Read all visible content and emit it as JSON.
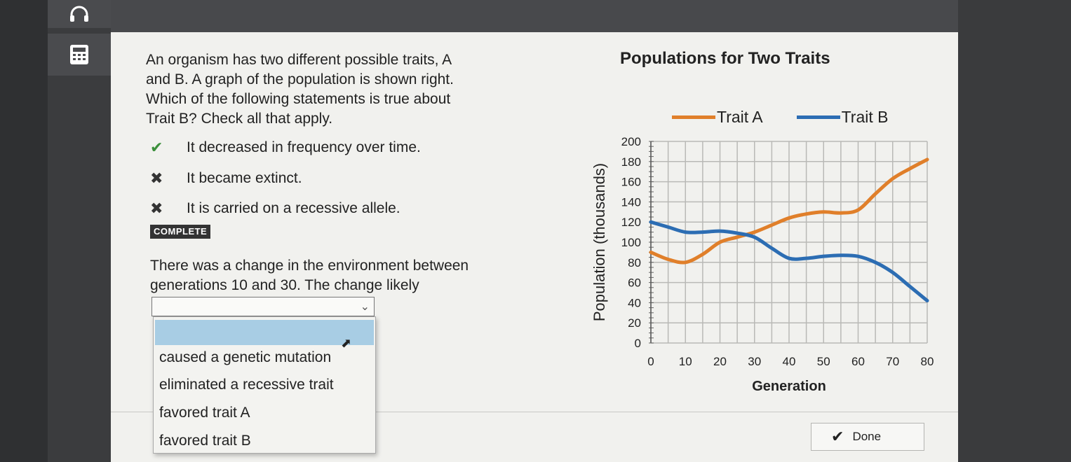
{
  "question": {
    "line1": "An organism has two different possible traits, A",
    "line2": "and B. A graph of the population is shown right.",
    "line3": "Which of the following statements is true about",
    "line4": "Trait B? Check all that apply."
  },
  "options": [
    {
      "label": "It decreased in frequency over time.",
      "mark": "✔",
      "status": "correct"
    },
    {
      "label": "It became extinct.",
      "mark": "✖",
      "status": "incorrect"
    },
    {
      "label": "It is carried on a recessive allele.",
      "mark": "✖",
      "status": "incorrect"
    }
  ],
  "complete_badge": "COMPLETE",
  "prompt2": {
    "line1": "There was a change in the environment between",
    "line2": "generations 10 and 30. The change likely"
  },
  "dropdown": {
    "selected": "",
    "items": [
      "caused a genetic mutation",
      "eliminated a recessive trait",
      "favored trait A",
      "favored trait B"
    ]
  },
  "done_button": "Done",
  "colors": {
    "trait_a": "#e07f2a",
    "trait_b": "#2c6db3"
  },
  "chart_data": {
    "type": "line",
    "title": "Populations for Two Traits",
    "xlabel": "Generation",
    "ylabel": "Population (thousands)",
    "xlim": [
      0,
      80
    ],
    "ylim": [
      0,
      200
    ],
    "xticks": [
      0,
      10,
      20,
      30,
      40,
      50,
      60,
      70,
      80
    ],
    "yticks": [
      0,
      20,
      40,
      60,
      80,
      100,
      120,
      140,
      160,
      180,
      200
    ],
    "grid": true,
    "legend": "top",
    "series": [
      {
        "name": "Trait A",
        "x": [
          0,
          5,
          10,
          15,
          20,
          25,
          30,
          35,
          40,
          45,
          50,
          55,
          60,
          65,
          70,
          75,
          80
        ],
        "y": [
          90,
          83,
          80,
          88,
          100,
          105,
          110,
          117,
          124,
          128,
          130,
          129,
          132,
          148,
          163,
          173,
          182
        ]
      },
      {
        "name": "Trait B",
        "x": [
          0,
          5,
          10,
          15,
          20,
          25,
          30,
          35,
          40,
          45,
          50,
          55,
          60,
          65,
          70,
          75,
          80
        ],
        "y": [
          120,
          115,
          110,
          110,
          111,
          109,
          105,
          94,
          84,
          84,
          86,
          87,
          86,
          80,
          70,
          56,
          42
        ]
      }
    ]
  }
}
